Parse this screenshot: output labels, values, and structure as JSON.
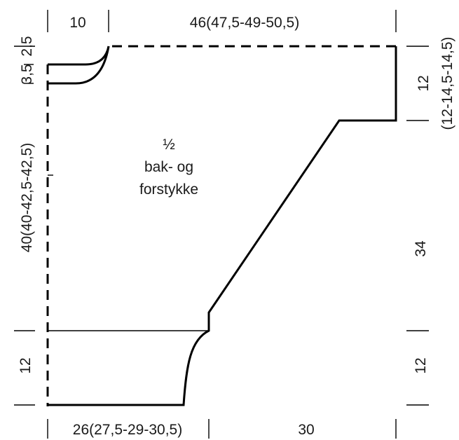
{
  "labels": {
    "top_left": "10",
    "top_right": "46(47,5-49-50,5)",
    "bottom_left": "26(27,5-29-30,5)",
    "bottom_right": "30",
    "left_top_a": "2,5",
    "left_top_b": "3,5",
    "left_middle": "40(40-42,5-42,5)",
    "left_bottom": "12",
    "right_top": "12",
    "right_top_variant": "(12-14,5-14,5)",
    "right_middle": "34",
    "right_bottom": "12",
    "center_line1": "½",
    "center_line2": "bak- og",
    "center_line3": "forstykke"
  },
  "colors": {
    "line": "#000000",
    "text": "#1a1a1a",
    "background": "#ffffff"
  }
}
